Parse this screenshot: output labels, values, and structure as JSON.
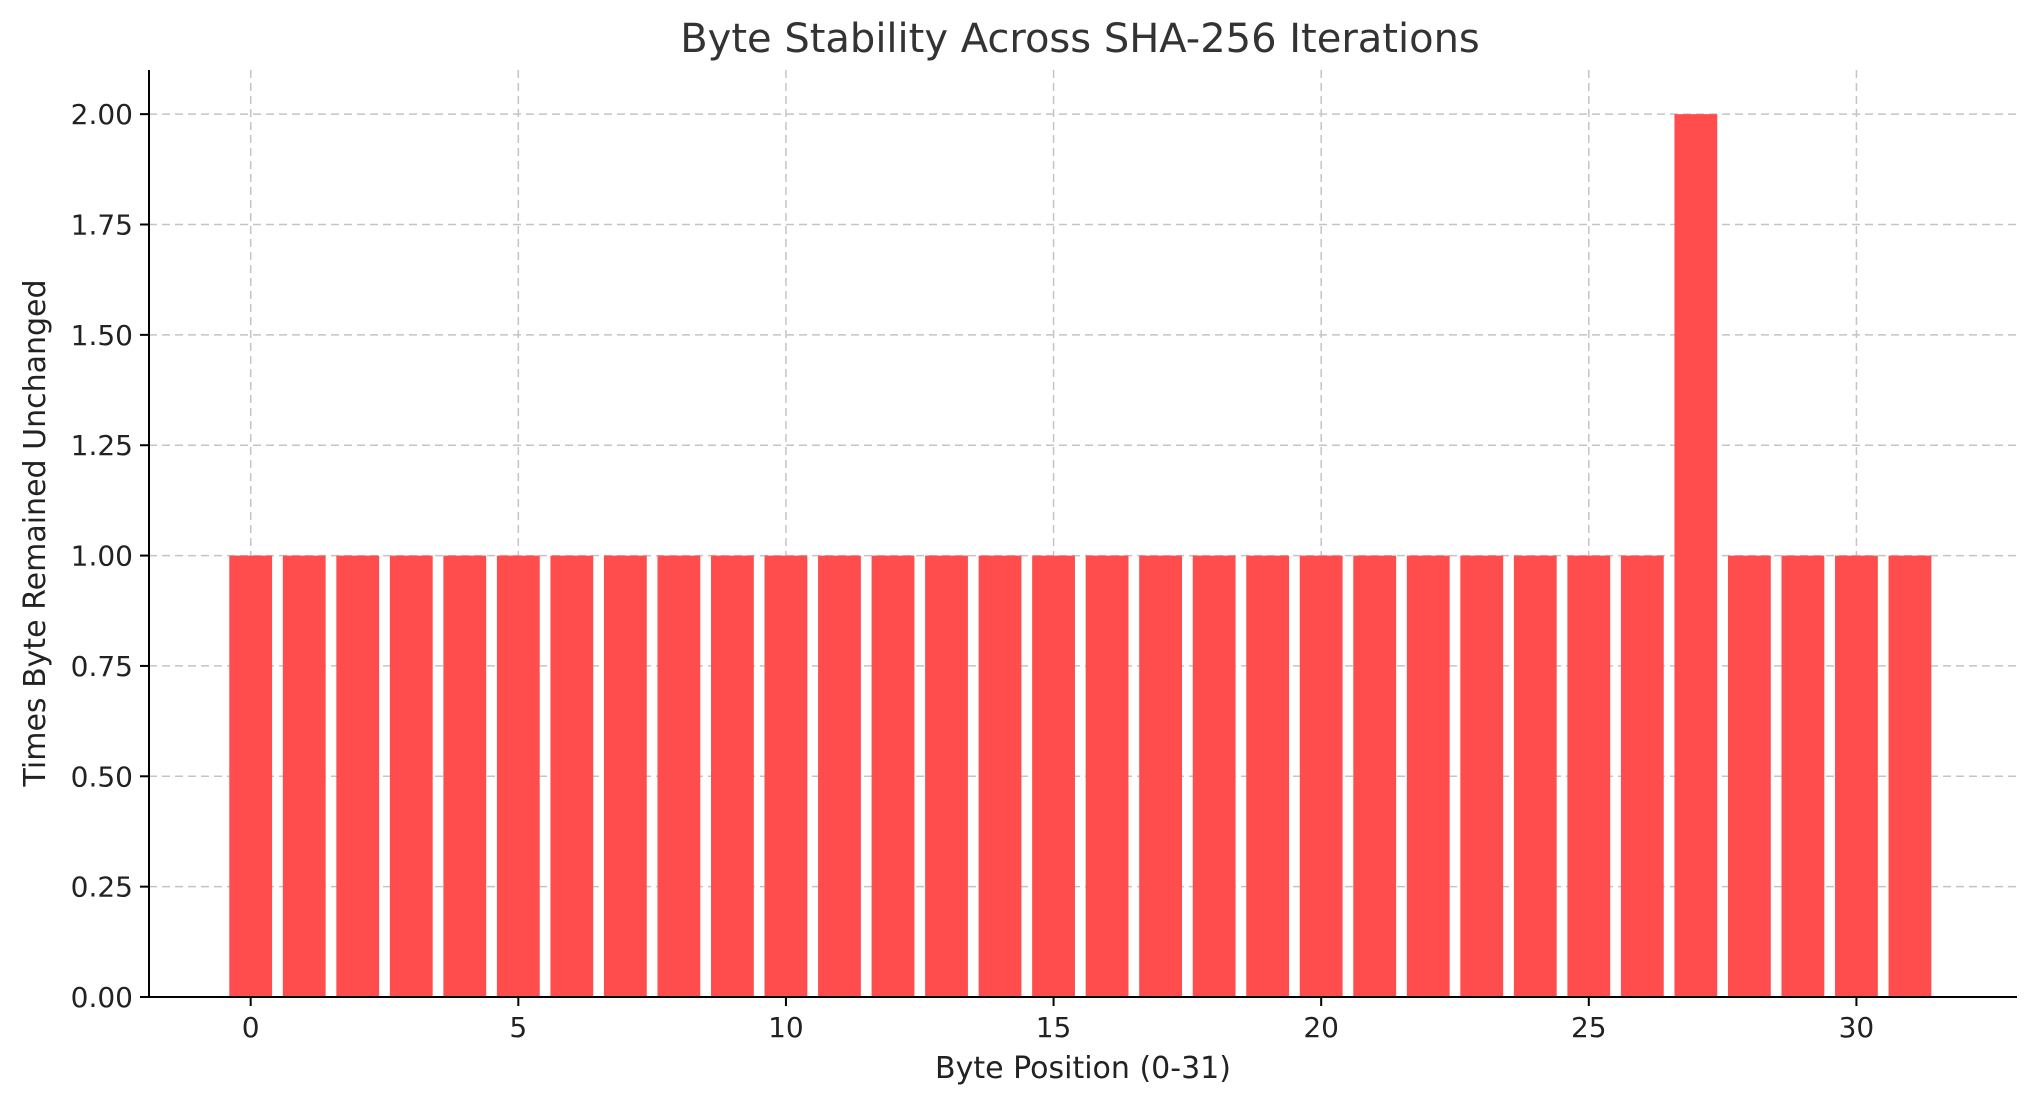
{
  "chart_data": {
    "type": "bar",
    "title": "Byte Stability Across SHA-256 Iterations",
    "xlabel": "Byte Position (0-31)",
    "ylabel": "Times Byte Remained Unchanged",
    "x": [
      0,
      1,
      2,
      3,
      4,
      5,
      6,
      7,
      8,
      9,
      10,
      11,
      12,
      13,
      14,
      15,
      16,
      17,
      18,
      19,
      20,
      21,
      22,
      23,
      24,
      25,
      26,
      27,
      28,
      29,
      30,
      31
    ],
    "values": [
      1,
      1,
      1,
      1,
      1,
      1,
      1,
      1,
      1,
      1,
      1,
      1,
      1,
      1,
      1,
      1,
      1,
      1,
      1,
      1,
      1,
      1,
      1,
      1,
      1,
      1,
      1,
      2,
      1,
      1,
      1,
      1
    ],
    "xlim": [
      -1.9,
      33.0
    ],
    "ylim": [
      0,
      2.1
    ],
    "xticks": [
      0,
      5,
      10,
      15,
      20,
      25,
      30
    ],
    "xtick_labels": [
      "0",
      "5",
      "10",
      "15",
      "20",
      "25",
      "30"
    ],
    "yticks": [
      0,
      0.25,
      0.5,
      0.75,
      1.0,
      1.25,
      1.5,
      1.75,
      2.0
    ],
    "ytick_labels": [
      "0.00",
      "0.25",
      "0.50",
      "0.75",
      "1.00",
      "1.25",
      "1.50",
      "1.75",
      "2.00"
    ],
    "grid": true,
    "bar_color": "#ff4d4d"
  }
}
